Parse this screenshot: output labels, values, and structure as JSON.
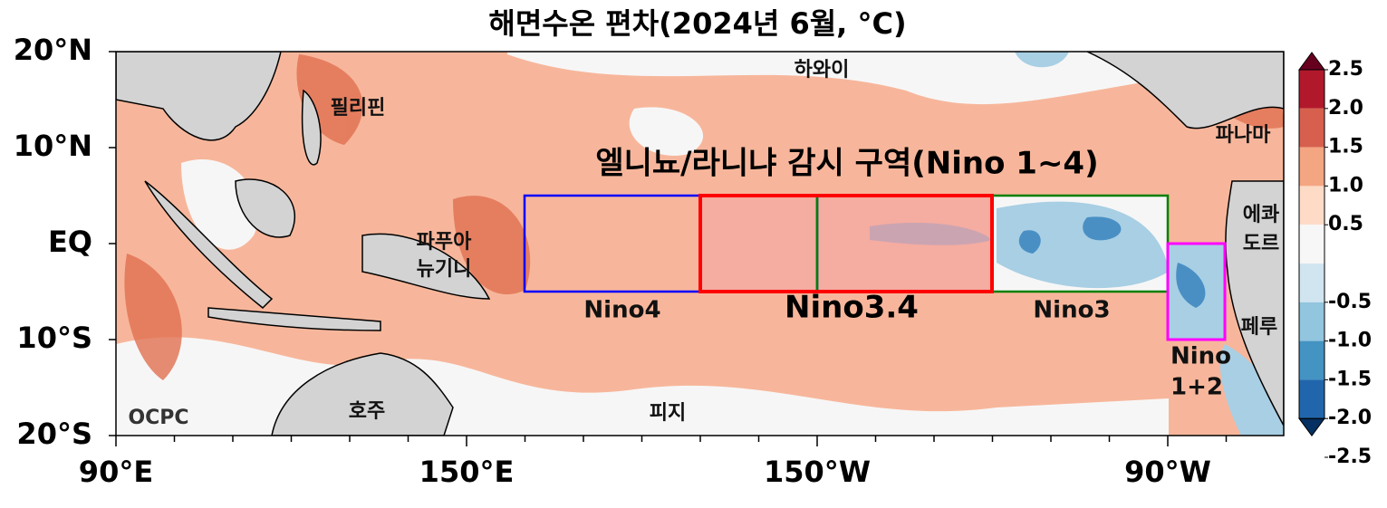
{
  "title": "해면수온 편차(2024년 6월, °C)",
  "y_labels": [
    "20°N",
    "10°N",
    "EQ",
    "10°S",
    "20°S"
  ],
  "x_labels": [
    "90°E",
    "150°E",
    "150°W",
    "90°W"
  ],
  "colorbar_labels": [
    "2.5",
    "2.0",
    "1.5",
    "1.0",
    "0.5",
    "-0.5",
    "-1.0",
    "-1.5",
    "-2.0",
    "-2.5"
  ],
  "region_title": "엘니뇨/라니냐 감시 구역(Nino 1~4)",
  "regions": {
    "nino4": "Nino4",
    "nino34": "Nino3.4",
    "nino3": "Nino3",
    "nino12": [
      "Nino",
      "1+2"
    ]
  },
  "places": {
    "hawaii": "하와이",
    "philippines": "필리핀",
    "panama": "파나마",
    "ecuador": [
      "에콰",
      "도르"
    ],
    "png": [
      "파푸아",
      "뉴기니"
    ],
    "australia": "호주",
    "fiji": "피지",
    "peru": "페루"
  },
  "credit": "OCPC"
}
